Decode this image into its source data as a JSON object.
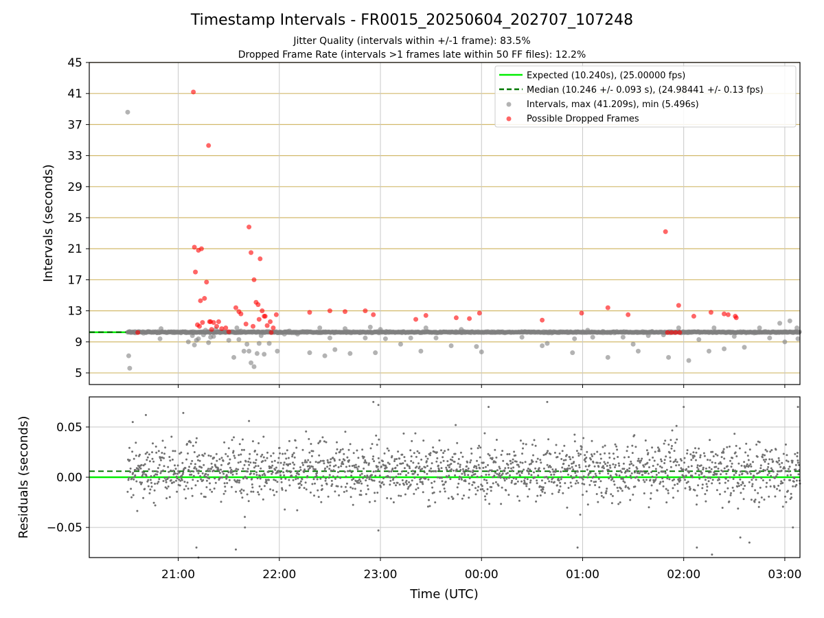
{
  "chart_data": [
    {
      "type": "scatter",
      "title": "Timestamp Intervals - FR0015_20250604_202707_107248",
      "subtitle_lines": [
        "Jitter Quality (intervals within +/-1 frame): 83.5%",
        "Dropped Frame Rate (intervals >1 frames late within 50 FF files): 12.2%"
      ],
      "ylabel": "Intervals (seconds)",
      "ylim": [
        3.5,
        45
      ],
      "yticks": [
        5,
        9,
        13,
        17,
        21,
        25,
        29,
        33,
        37,
        41,
        45
      ],
      "xlim_hours": [
        20.12,
        27.15
      ],
      "xtick_hours": [
        21,
        22,
        23,
        24,
        25,
        26,
        27
      ],
      "xtick_labels": [
        "21:00",
        "22:00",
        "23:00",
        "00:00",
        "01:00",
        "02:00",
        "03:00"
      ],
      "grid": true,
      "legend_position": "top-right",
      "expected_interval": 10.24,
      "median_interval": 10.246,
      "legend": [
        "Expected (10.240s), (25.00000 fps)",
        "Median (10.246 +/- 0.093 s), (24.98441 +/- 0.13 fps)",
        "Intervals, max (41.209s), min (5.496s)",
        "Possible Dropped Frames"
      ],
      "colors": {
        "expected": "#00ee00",
        "median": "#007700",
        "intervals": "#808080",
        "dropped": "#ff0000",
        "hgrid": "#d2b96a",
        "vgrid": "#c8c8c8"
      },
      "series": [
        {
          "name": "Intervals, max (41.209s), min (5.496s)",
          "x_hours": [
            20.5,
            20.51,
            20.52,
            20.82,
            20.83,
            20.79,
            21.07,
            21.1,
            21.14,
            21.16,
            21.18,
            21.2,
            21.25,
            21.27,
            21.3,
            21.32,
            21.35,
            21.37,
            21.4,
            21.5,
            21.55,
            21.58,
            21.6,
            21.62,
            21.65,
            21.68,
            21.7,
            21.72,
            21.75,
            21.78,
            21.8,
            21.82,
            21.85,
            21.87,
            21.9,
            21.98,
            22.05,
            22.1,
            22.18,
            22.3,
            22.4,
            22.45,
            22.5,
            22.55,
            22.65,
            22.7,
            22.8,
            22.85,
            22.9,
            22.95,
            23.0,
            23.05,
            23.2,
            23.25,
            23.3,
            23.4,
            23.45,
            23.55,
            23.7,
            23.8,
            23.95,
            24.0,
            24.1,
            24.4,
            24.6,
            24.65,
            24.85,
            24.9,
            24.92,
            25.05,
            25.1,
            25.25,
            25.4,
            25.5,
            25.55,
            25.65,
            25.8,
            25.85,
            25.95,
            26.05,
            26.15,
            26.25,
            26.3,
            26.4,
            26.5,
            26.6,
            26.75,
            26.85,
            26.95,
            27.0,
            27.05,
            27.12,
            27.13
          ],
          "y": [
            38.6,
            7.2,
            5.6,
            9.4,
            10.7,
            10.2,
            10.3,
            9.0,
            9.8,
            8.6,
            9.2,
            9.4,
            9.9,
            10.5,
            8.9,
            9.6,
            9.7,
            10.6,
            10.3,
            9.2,
            7.0,
            10.8,
            9.3,
            10.4,
            7.8,
            8.7,
            7.8,
            6.3,
            5.8,
            7.5,
            8.8,
            9.8,
            7.4,
            10.3,
            8.8,
            7.8,
            10.0,
            10.4,
            10.0,
            7.6,
            10.8,
            7.2,
            9.5,
            8.0,
            10.7,
            7.5,
            10.3,
            9.5,
            10.9,
            7.6,
            10.6,
            9.4,
            8.7,
            10.2,
            9.5,
            7.8,
            10.8,
            9.5,
            8.5,
            10.6,
            8.4,
            7.7,
            10.3,
            9.6,
            8.5,
            8.8,
            10.3,
            7.6,
            9.4,
            10.5,
            9.6,
            7.0,
            9.6,
            8.7,
            7.8,
            9.8,
            9.9,
            7.0,
            10.8,
            6.6,
            9.3,
            7.8,
            10.8,
            8.1,
            9.7,
            8.3,
            10.8,
            9.5,
            11.4,
            9.0,
            11.7,
            10.8,
            9.4
          ]
        },
        {
          "name": "Possible Dropped Frames",
          "x_hours": [
            20.6,
            21.15,
            21.16,
            21.2,
            21.23,
            21.24,
            21.3,
            21.32,
            21.35,
            21.38,
            21.17,
            21.19,
            21.21,
            21.26,
            21.28,
            21.33,
            21.43,
            21.47,
            21.57,
            21.62,
            21.7,
            21.72,
            21.75,
            21.77,
            21.79,
            21.81,
            21.83,
            21.85,
            21.88,
            21.91,
            21.94,
            21.97,
            22.3,
            22.5,
            22.65,
            22.85,
            22.93,
            23.35,
            23.45,
            23.75,
            23.88,
            23.98,
            24.6,
            24.99,
            25.25,
            25.45,
            25.82,
            25.95,
            26.1,
            26.27,
            26.4,
            26.44,
            26.51,
            26.52,
            21.22,
            21.31,
            21.4,
            21.5,
            21.6,
            21.67,
            21.74,
            21.8,
            21.86,
            21.92,
            25.84,
            25.88,
            25.92,
            25.96
          ],
          "y": [
            10.2,
            41.2,
            21.2,
            20.8,
            21.0,
            11.5,
            34.3,
            11.6,
            11.5,
            11.0,
            18.0,
            11.2,
            11.0,
            14.6,
            16.7,
            10.6,
            10.7,
            10.8,
            13.4,
            12.6,
            23.8,
            20.5,
            17.0,
            14.1,
            13.8,
            19.7,
            13.0,
            12.3,
            11.1,
            11.6,
            10.8,
            12.5,
            12.8,
            13.0,
            12.9,
            13.0,
            12.5,
            11.9,
            12.4,
            12.1,
            12.0,
            12.7,
            11.8,
            12.7,
            13.4,
            12.5,
            23.2,
            13.7,
            12.3,
            12.8,
            12.6,
            12.5,
            12.3,
            12.1,
            14.3,
            11.6,
            11.6,
            10.3,
            12.9,
            11.3,
            11.0,
            11.9,
            12.3,
            10.2,
            10.2,
            10.2,
            10.2,
            10.2
          ]
        }
      ]
    },
    {
      "type": "scatter",
      "xlabel": "Time (UTC)",
      "ylabel": "Residuals (seconds)",
      "ylim": [
        -0.08,
        0.08
      ],
      "yticks": [
        0.05,
        0.0,
        -0.05
      ],
      "ytick_labels": [
        "0.05",
        "0.00",
        "−0.05"
      ],
      "xlim_hours": [
        20.12,
        27.15
      ],
      "xtick_hours": [
        21,
        22,
        23,
        24,
        25,
        26,
        27
      ],
      "xtick_labels": [
        "21:00",
        "22:00",
        "23:00",
        "00:00",
        "01:00",
        "02:00",
        "03:00"
      ],
      "grid": true,
      "expected_residual": 0.0,
      "median_residual": 0.006,
      "residual_spread": 0.02,
      "residual_outliers": {
        "x_hours": [
          20.55,
          20.68,
          21.05,
          21.18,
          21.2,
          21.57,
          21.66,
          22.93,
          22.98,
          24.07,
          24.65,
          24.95,
          26.0,
          26.28,
          26.65,
          27.08,
          27.13,
          21.7,
          22.98,
          26.13,
          26.56
        ],
        "y": [
          0.055,
          0.062,
          0.064,
          -0.07,
          -0.08,
          -0.072,
          -0.05,
          0.075,
          -0.053,
          0.07,
          0.075,
          -0.07,
          0.07,
          -0.077,
          -0.065,
          -0.05,
          0.07,
          0.056,
          0.072,
          -0.07,
          -0.06
        ]
      }
    }
  ]
}
